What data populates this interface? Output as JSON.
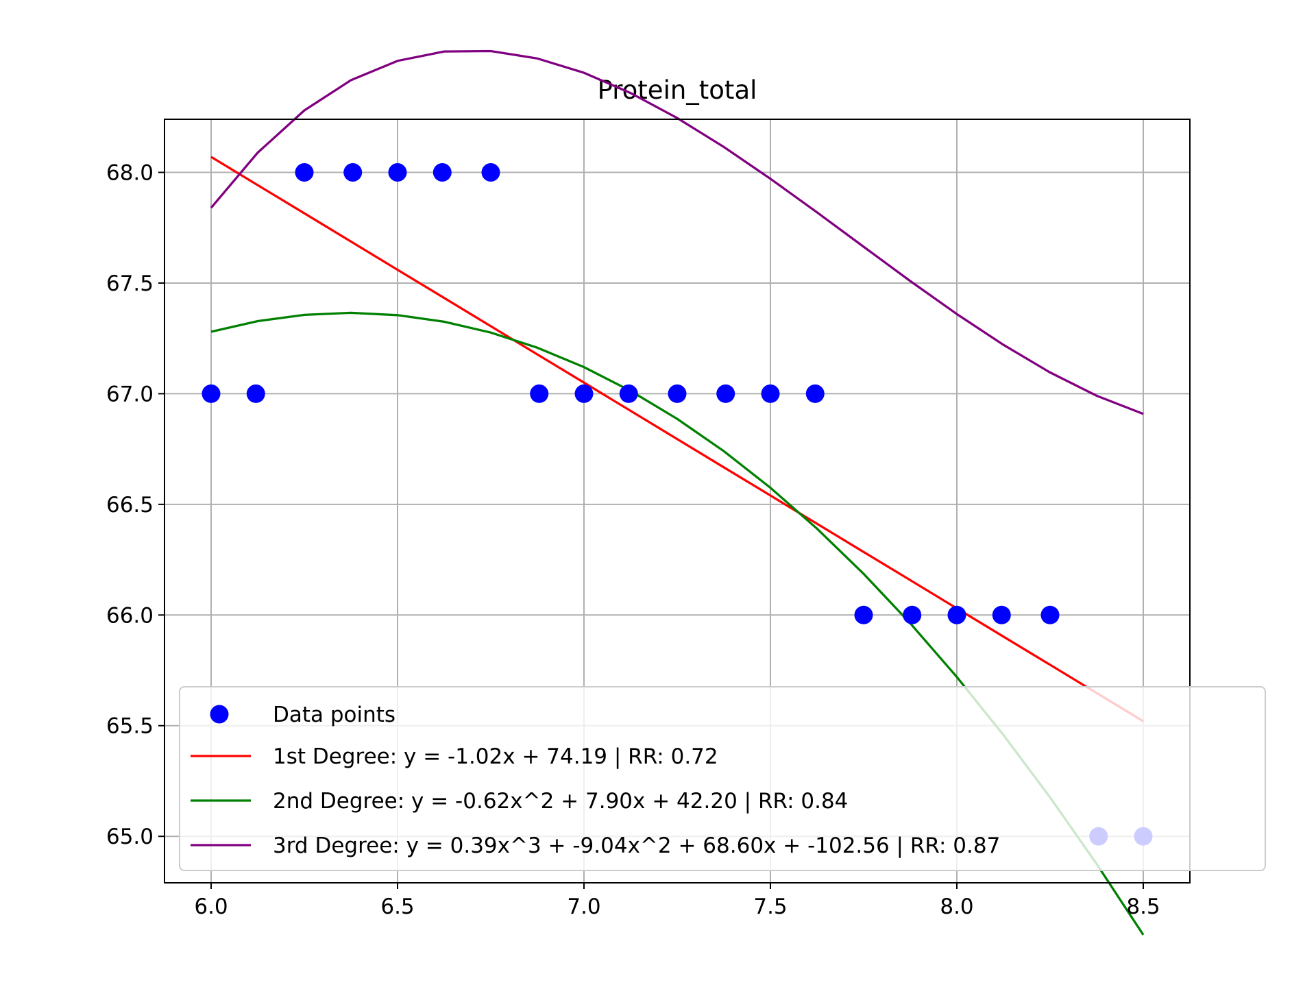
{
  "chart_data": {
    "type": "scatter",
    "title": "Protein_total",
    "xlabel": "",
    "ylabel": "",
    "xlim": [
      5.875,
      8.625
    ],
    "ylim": [
      64.79,
      68.24
    ],
    "xticks": [
      6.0,
      6.5,
      7.0,
      7.5,
      8.0,
      8.5
    ],
    "xtick_labels": [
      "6.0",
      "6.5",
      "7.0",
      "7.5",
      "8.0",
      "8.5"
    ],
    "yticks": [
      65.0,
      65.5,
      66.0,
      66.5,
      67.0,
      67.5,
      68.0
    ],
    "ytick_labels": [
      "65.0",
      "65.5",
      "66.0",
      "66.5",
      "67.0",
      "67.5",
      "68.0"
    ],
    "grid": true,
    "legend_position": "lower-right",
    "scatter": {
      "name": "Data points",
      "color": "#0000ff",
      "points": [
        [
          6.0,
          67.0
        ],
        [
          6.12,
          67.0
        ],
        [
          6.25,
          68.0
        ],
        [
          6.38,
          68.0
        ],
        [
          6.5,
          68.0
        ],
        [
          6.62,
          68.0
        ],
        [
          6.75,
          68.0
        ],
        [
          6.88,
          67.0
        ],
        [
          7.0,
          67.0
        ],
        [
          7.12,
          67.0
        ],
        [
          7.25,
          67.0
        ],
        [
          7.38,
          67.0
        ],
        [
          7.5,
          67.0
        ],
        [
          7.62,
          67.0
        ],
        [
          7.75,
          66.0
        ],
        [
          7.88,
          66.0
        ],
        [
          8.0,
          66.0
        ],
        [
          8.12,
          66.0
        ],
        [
          8.25,
          66.0
        ],
        [
          8.38,
          65.0
        ],
        [
          8.5,
          65.0
        ]
      ]
    },
    "series": [
      {
        "name": "1st Degree: y = -1.02x + 74.19 | RR: 0.72",
        "color": "#ff0000",
        "coefficients": [
          74.19,
          -1.02
        ]
      },
      {
        "name": "2nd Degree: y = -0.62x^2 + 7.90x + 42.20 | RR: 0.84",
        "color": "#008000",
        "coefficients": [
          42.2,
          7.9,
          -0.62
        ]
      },
      {
        "name": "3rd Degree: y = 0.39x^3 + -9.04x^2 + 68.60x + -102.56 | RR: 0.87",
        "color": "#800080",
        "coefficients": [
          -102.56,
          68.6,
          -9.04,
          0.39
        ]
      }
    ]
  }
}
